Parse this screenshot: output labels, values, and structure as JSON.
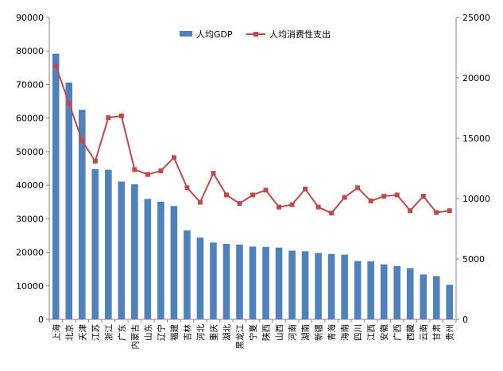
{
  "chart_data": {
    "type": "bar+line",
    "title": "",
    "categories": [
      "上海",
      "北京",
      "天津",
      "江苏",
      "浙江",
      "广东",
      "内蒙古",
      "山东",
      "辽宁",
      "福建",
      "吉林",
      "河北",
      "重庆",
      "湖北",
      "黑龙江",
      "宁夏",
      "陕西",
      "山西",
      "河南",
      "湖南",
      "新疆",
      "青海",
      "海南",
      "四川",
      "江西",
      "安徽",
      "广西",
      "西藏",
      "云南",
      "甘肃",
      "贵州"
    ],
    "series": [
      {
        "name": "人均GDP",
        "type": "bar",
        "axis": "left",
        "color": "#4f81bd",
        "values": [
          79200,
          70600,
          62500,
          44800,
          44600,
          41100,
          40300,
          35900,
          35100,
          33800,
          26500,
          24400,
          22900,
          22500,
          22300,
          21700,
          21600,
          21400,
          20500,
          20300,
          19800,
          19500,
          19300,
          17400,
          17300,
          16400,
          15900,
          15300,
          13400,
          12900,
          10300
        ]
      },
      {
        "name": "人均消费性支出",
        "type": "line",
        "axis": "right",
        "color": "#be4b48",
        "values": [
          21000,
          17900,
          14800,
          13100,
          16700,
          16850,
          12400,
          12000,
          12300,
          13400,
          10900,
          9700,
          12100,
          10300,
          9600,
          10300,
          10700,
          9300,
          9500,
          10800,
          9300,
          8800,
          10100,
          10900,
          9800,
          10200,
          10300,
          9000,
          10200,
          8850,
          9000
        ]
      }
    ],
    "y_left": {
      "min": 0,
      "max": 90000,
      "ticks": [
        0,
        10000,
        20000,
        30000,
        40000,
        50000,
        60000,
        70000,
        80000,
        90000
      ]
    },
    "y_right": {
      "min": 0,
      "max": 25000,
      "ticks": [
        0,
        5000,
        10000,
        15000,
        20000,
        25000
      ]
    },
    "legend_position": "top-center",
    "grid": false
  }
}
